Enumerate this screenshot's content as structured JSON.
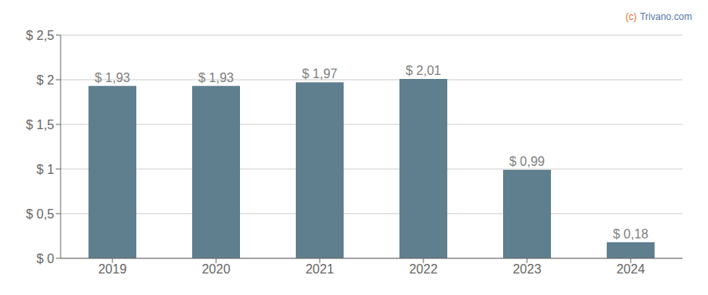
{
  "chart_data": {
    "type": "bar",
    "categories": [
      "2019",
      "2020",
      "2021",
      "2022",
      "2023",
      "2024"
    ],
    "values": [
      1.93,
      1.93,
      1.97,
      2.01,
      0.99,
      0.18
    ],
    "value_labels": [
      "$ 1,93",
      "$ 1,93",
      "$ 1,97",
      "$ 2,01",
      "$ 0,99",
      "$ 0,18"
    ],
    "data_labels": true,
    "color": "#5f7f8e",
    "ylim": [
      0,
      2.5
    ],
    "yticks": [
      {
        "value": 0,
        "label": "$ 0"
      },
      {
        "value": 0.5,
        "label": "$ 0,5"
      },
      {
        "value": 1.0,
        "label": "$ 1"
      },
      {
        "value": 1.5,
        "label": "$ 1,5"
      },
      {
        "value": 2.0,
        "label": "$ 2"
      },
      {
        "value": 2.5,
        "label": "$ 2,5"
      }
    ],
    "grid": true,
    "annotations": [
      {
        "text": "(c)",
        "color": "#e07030"
      },
      {
        "text": "Trivano.com",
        "color": "#5577aa"
      }
    ]
  }
}
